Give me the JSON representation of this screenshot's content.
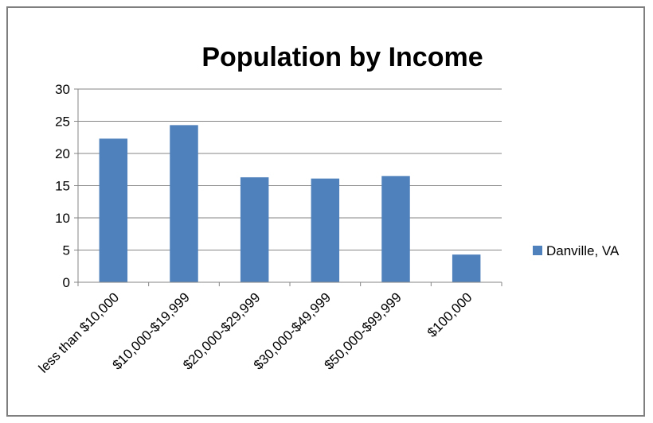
{
  "chart_data": {
    "type": "bar",
    "title": "Population by Income",
    "xlabel": "",
    "ylabel": "",
    "categories": [
      "less than $10,000",
      "$10,000-$19,999",
      "$20,000-$29,999",
      "$30,000-$49,999",
      "$50,000-$99,999",
      "$100,000"
    ],
    "series": [
      {
        "name": "Danville, VA",
        "values": [
          22.3,
          24.4,
          16.3,
          16.1,
          16.5,
          4.3
        ],
        "color": "#4f81bd"
      }
    ],
    "ylim": [
      0,
      30
    ],
    "yticks": [
      "0",
      "5",
      "10",
      "15",
      "20",
      "25",
      "30"
    ],
    "grid": true,
    "legend_position": "right"
  }
}
